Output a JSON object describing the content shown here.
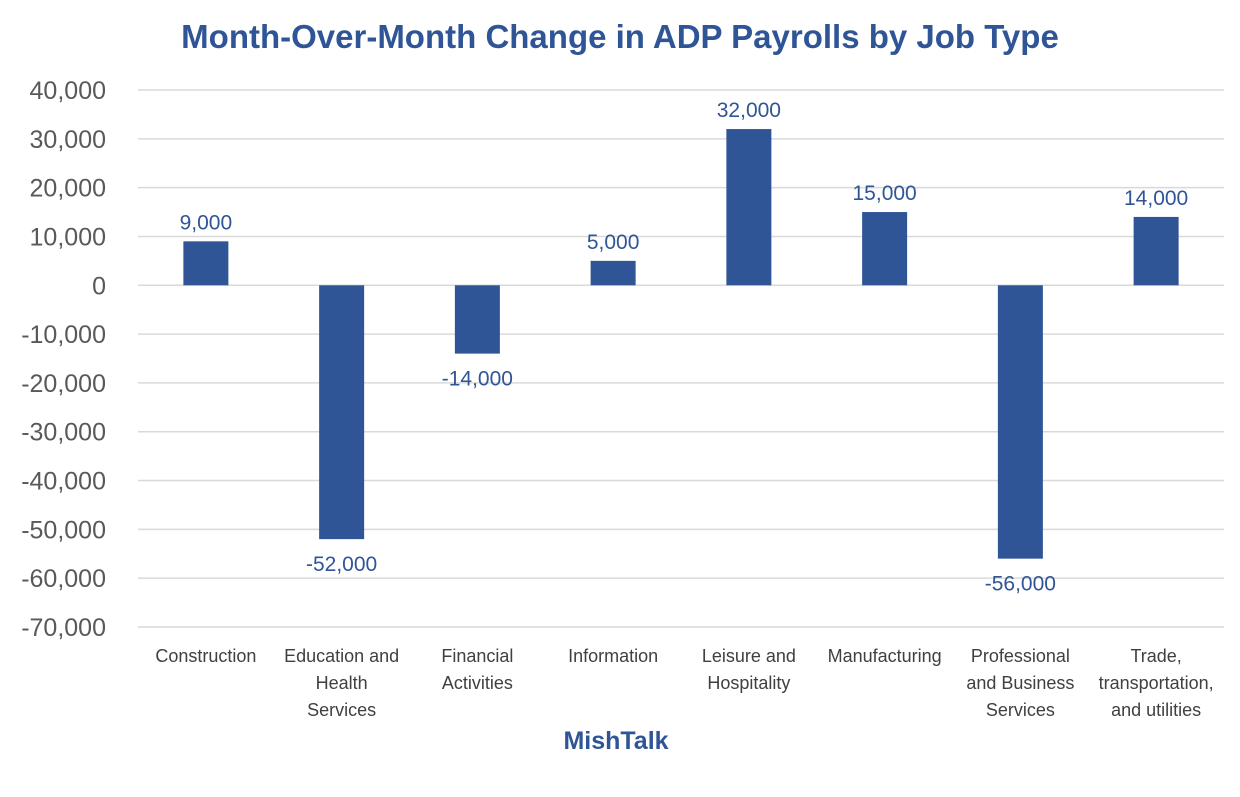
{
  "chart_data": {
    "type": "bar",
    "title": "Month-Over-Month Change in ADP Payrolls by Job Type",
    "xlabel": "MishTalk",
    "ylabel": "",
    "categories": [
      [
        "Construction"
      ],
      [
        "Education and",
        "Health",
        "Services"
      ],
      [
        "Financial",
        "Activities"
      ],
      [
        "Information"
      ],
      [
        "Leisure and",
        "Hospitality"
      ],
      [
        "Manufacturing"
      ],
      [
        "Professional",
        "and Business",
        "Services"
      ],
      [
        "Trade,",
        "transportation,",
        "and utilities"
      ]
    ],
    "values": [
      9000,
      -52000,
      -14000,
      5000,
      32000,
      15000,
      -56000,
      14000
    ],
    "data_labels": [
      "9,000",
      "-52,000",
      "-14,000",
      "5,000",
      "32,000",
      "15,000",
      "-56,000",
      "14,000"
    ],
    "ylim": [
      -70000,
      40000
    ],
    "yticks": [
      40000,
      30000,
      20000,
      10000,
      0,
      -10000,
      -20000,
      -30000,
      -40000,
      -50000,
      -60000,
      -70000
    ],
    "ytick_labels": [
      "40,000",
      "30,000",
      "20,000",
      "10,000",
      "0",
      "-10,000",
      "-20,000",
      "-30,000",
      "-40,000",
      "-50,000",
      "-60,000",
      "-70,000"
    ],
    "grid": true,
    "legend": "none",
    "bar_color": "#2F5597",
    "grid_color": "#D9D9D9"
  }
}
